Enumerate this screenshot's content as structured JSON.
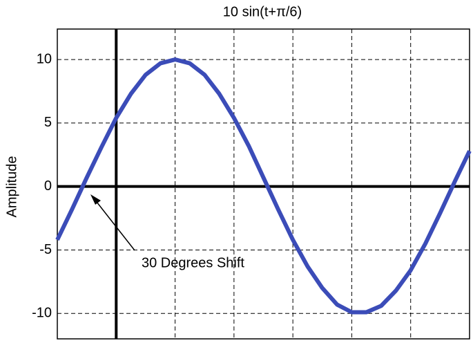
{
  "chart_data": {
    "type": "line",
    "title": "10 sin(t+π/6)",
    "ylabel": "Amplitude",
    "annotation": "30 Degrees Shift",
    "x": [
      0,
      0.25,
      0.5,
      0.75,
      1,
      1.25,
      1.5,
      1.75,
      2,
      2.25,
      2.5,
      2.75,
      3,
      3.25,
      3.5,
      3.75,
      4,
      4.25,
      4.5,
      4.75,
      5,
      5.25,
      5.5,
      5.75,
      6,
      6.25,
      6.5,
      6.75,
      7
    ],
    "series": [
      {
        "color": "#3b4cb8",
        "values": [
          -4.2,
          -1.8,
          0.7,
          3.1,
          5.4,
          7.3,
          8.8,
          9.7,
          10.0,
          9.7,
          8.8,
          7.3,
          5.4,
          3.2,
          0.7,
          -1.8,
          -4.2,
          -6.3,
          -8.0,
          -9.3,
          -9.9,
          -9.9,
          -9.4,
          -8.2,
          -6.6,
          -4.5,
          -2.1,
          0.4,
          2.8
        ]
      }
    ],
    "xlim": [
      0,
      7
    ],
    "xticks": [
      1,
      2,
      3,
      4,
      5,
      6
    ],
    "ylim": [
      -12,
      12.4
    ],
    "yticks": [
      -10,
      -5,
      0,
      5,
      10
    ],
    "axvline": 1,
    "axhline": 0,
    "grid": true
  }
}
